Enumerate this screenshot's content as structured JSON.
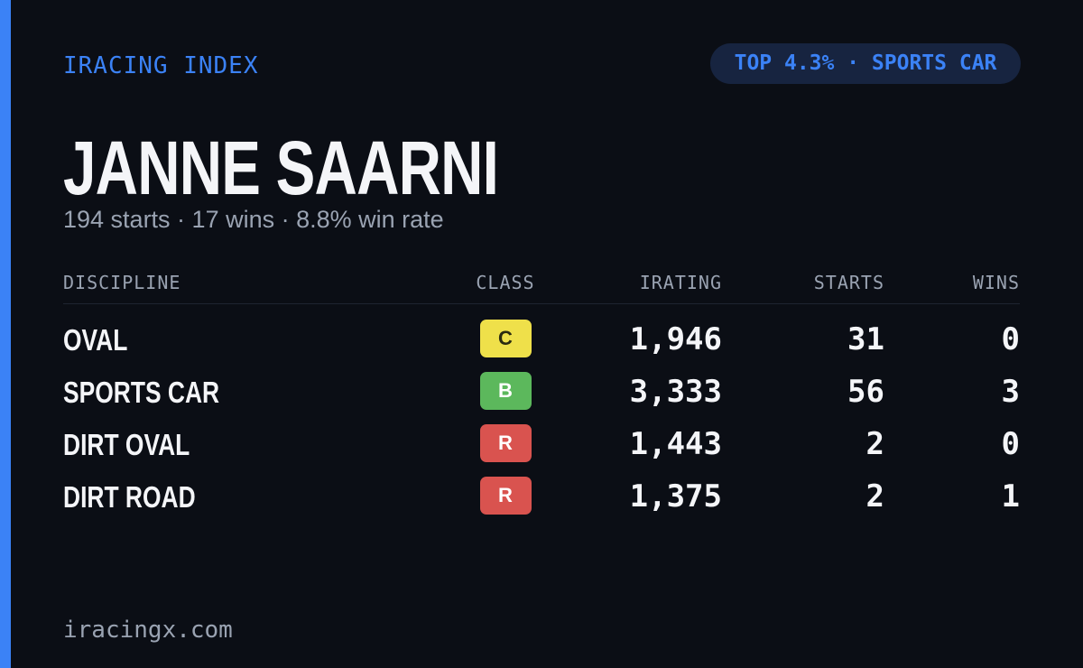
{
  "header": {
    "brand": "IRACING INDEX",
    "badge": "TOP 4.3% · SPORTS CAR"
  },
  "driver": {
    "name": "JANNE SAARNI",
    "summary": "194 starts · 17 wins · 8.8% win rate"
  },
  "table": {
    "columns": [
      "DISCIPLINE",
      "CLASS",
      "IRATING",
      "STARTS",
      "WINS"
    ],
    "rows": [
      [
        "OVAL",
        "C",
        "1,946",
        "31",
        "0"
      ],
      [
        "SPORTS CAR",
        "B",
        "3,333",
        "56",
        "3"
      ],
      [
        "DIRT OVAL",
        "R",
        "1,443",
        "2",
        "0"
      ],
      [
        "DIRT ROAD",
        "R",
        "1,375",
        "2",
        "1"
      ]
    ],
    "class_colors": [
      "#efe04a",
      "#5cb85c",
      "#d9534f",
      "#d9534f"
    ]
  },
  "footer": {
    "site": "iracingx.com"
  }
}
